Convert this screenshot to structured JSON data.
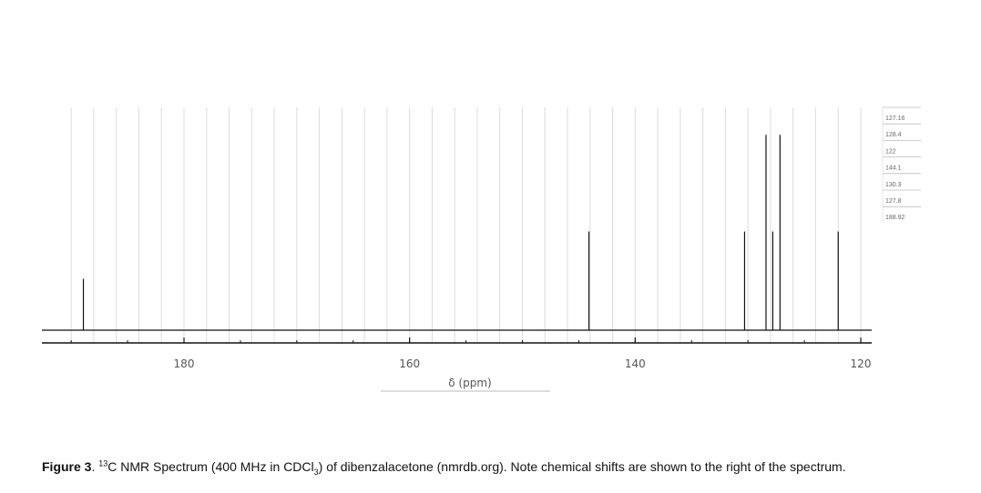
{
  "chart_data": {
    "type": "line",
    "xlabel": "δ (ppm)",
    "x_ticks": [
      180,
      160,
      140,
      120
    ],
    "xlim": [
      192,
      119
    ],
    "peaks": [
      {
        "x": 188.92,
        "height": 0.25
      },
      {
        "x": 144.1,
        "height": 0.48
      },
      {
        "x": 130.3,
        "height": 0.48
      },
      {
        "x": 128.4,
        "height": 0.95
      },
      {
        "x": 127.8,
        "height": 0.48
      },
      {
        "x": 127.16,
        "height": 0.95
      },
      {
        "x": 122.0,
        "height": 0.48
      }
    ],
    "shift_list": [
      "127.16",
      "128.4",
      "122",
      "144.1",
      "130.3",
      "127.8",
      "188.92"
    ],
    "grid": true
  },
  "caption": {
    "figure_label": "Figure 3",
    "text_1": ". ",
    "sup": "13",
    "text_2": "C NMR Spectrum (400 MHz in CDCl",
    "sub": "3",
    "text_3": ") of dibenzalacetone (nmrdb.org). Note chemical shifts are shown to the right of the spectrum."
  },
  "colors": {
    "line": "#111111",
    "grid": "#dcdcdc",
    "axis": "#111111"
  }
}
